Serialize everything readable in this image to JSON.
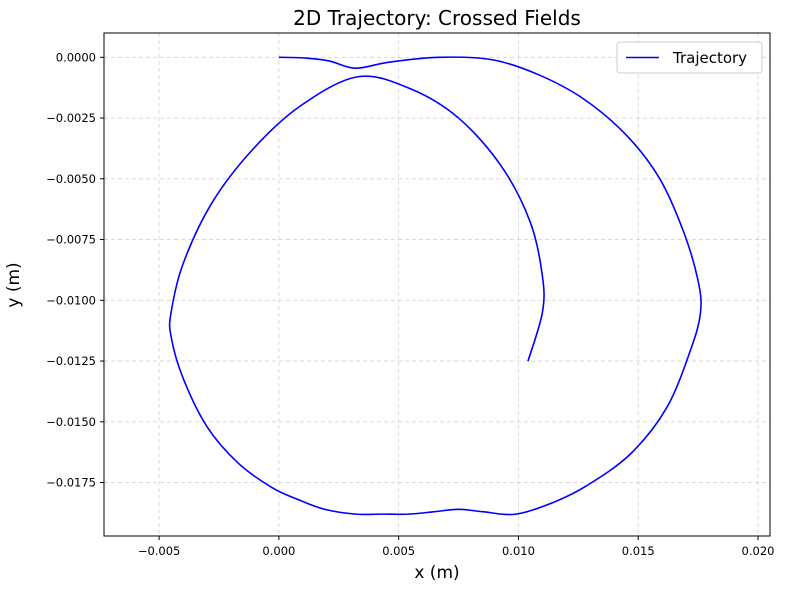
{
  "chart_data": {
    "type": "line",
    "title": "2D Trajectory: Crossed Fields",
    "xlabel": "x (m)",
    "ylabel": "y (m)",
    "xlim": [
      -0.0073,
      0.0205
    ],
    "ylim": [
      -0.0197,
      0.001
    ],
    "xticks": [
      -0.005,
      0.0,
      0.005,
      0.01,
      0.015,
      0.02
    ],
    "xtick_labels": [
      "−0.005",
      "0.000",
      "0.005",
      "0.010",
      "0.015",
      "0.020"
    ],
    "yticks": [
      0.0,
      -0.0025,
      -0.005,
      -0.0075,
      -0.01,
      -0.0125,
      -0.015,
      -0.0175
    ],
    "ytick_labels": [
      "0.0000",
      "−0.0025",
      "−0.0050",
      "−0.0075",
      "−0.0100",
      "−0.0125",
      "−0.0150",
      "−0.0175"
    ],
    "grid": true,
    "legend": {
      "position": "top-right"
    },
    "series": [
      {
        "name": "Trajectory",
        "color": "#0000ff",
        "x": [
          0.0,
          0.0011,
          0.0021,
          0.0032,
          0.0046,
          0.0067,
          0.0089,
          0.0108,
          0.0127,
          0.0145,
          0.0159,
          0.0169,
          0.0175,
          0.0176,
          0.0172,
          0.0162,
          0.0147,
          0.0129,
          0.0115,
          0.0099,
          0.0085,
          0.0075,
          0.0065,
          0.0054,
          0.0043,
          0.0032,
          0.0019,
          0.0008,
          -0.0003,
          -0.0017,
          -0.003,
          -0.004,
          -0.0045,
          -0.0045,
          -0.004,
          -0.0028,
          -0.0011,
          0.0009,
          0.0033,
          0.0055,
          0.0075,
          0.0093,
          0.0105,
          0.011,
          0.011,
          0.0104
        ],
        "y": [
          0.0,
          -3e-05,
          -0.00015,
          -0.00045,
          -0.0002,
          0.0,
          -0.0001,
          -0.0007,
          -0.0017,
          -0.0032,
          -0.005,
          -0.0072,
          -0.0092,
          -0.0105,
          -0.012,
          -0.0144,
          -0.0163,
          -0.0176,
          -0.0183,
          -0.0188,
          -0.0187,
          -0.0186,
          -0.0187,
          -0.0188,
          -0.0188,
          -0.0188,
          -0.0186,
          -0.0182,
          -0.0177,
          -0.0167,
          -0.0152,
          -0.0132,
          -0.0115,
          -0.0105,
          -0.0085,
          -0.006,
          -0.0038,
          -0.002,
          -0.0008,
          -0.0013,
          -0.0025,
          -0.0045,
          -0.0068,
          -0.009,
          -0.0105,
          -0.0125
        ]
      }
    ]
  }
}
